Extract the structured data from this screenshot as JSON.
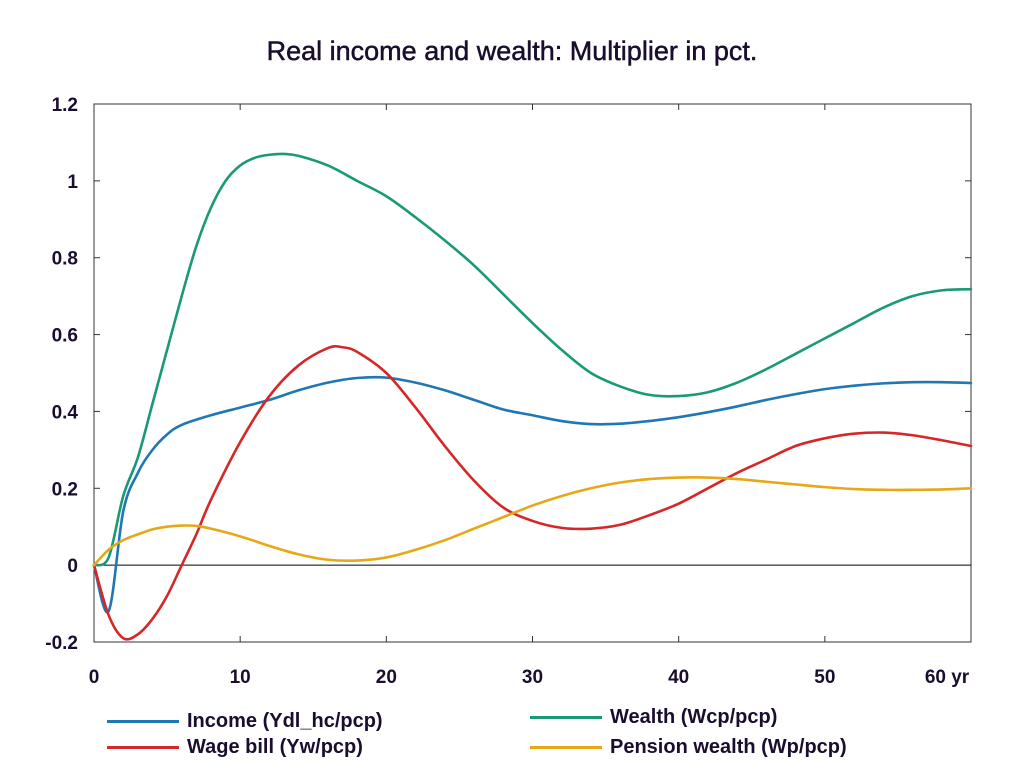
{
  "chart_data": {
    "type": "line",
    "title": "Real income and wealth: Multiplier in pct.",
    "x_unit_label": "yr",
    "xlim": [
      0,
      60
    ],
    "ylim": [
      -0.2,
      1.2
    ],
    "x_ticks": [
      0,
      10,
      20,
      30,
      40,
      50,
      60
    ],
    "x_tick_labels": [
      "0",
      "10",
      "20",
      "30",
      "40",
      "50",
      "60 yr"
    ],
    "y_ticks": [
      -0.2,
      0,
      0.2,
      0.4,
      0.6,
      0.8,
      1,
      1.2
    ],
    "y_tick_labels": [
      "-0.2",
      "0",
      "0.2",
      "0.4",
      "0.6",
      "0.8",
      "1",
      "1.2"
    ],
    "grid": false,
    "legend_position": "bottom",
    "series": [
      {
        "name": "Income (Ydl_hc/pcp)",
        "color": "#1f77b4",
        "x": [
          0,
          1,
          2,
          3,
          4,
          5,
          6,
          8,
          10,
          12,
          14,
          16,
          18,
          20,
          22,
          24,
          26,
          28,
          30,
          32,
          34,
          36,
          38,
          40,
          42,
          44,
          46,
          48,
          50,
          52,
          54,
          56,
          58,
          60
        ],
        "y": [
          0,
          -0.12,
          0.14,
          0.24,
          0.3,
          0.34,
          0.365,
          0.39,
          0.41,
          0.43,
          0.455,
          0.475,
          0.487,
          0.488,
          0.475,
          0.455,
          0.43,
          0.405,
          0.39,
          0.375,
          0.367,
          0.368,
          0.375,
          0.385,
          0.398,
          0.413,
          0.43,
          0.445,
          0.458,
          0.467,
          0.473,
          0.476,
          0.476,
          0.474
        ]
      },
      {
        "name": "Wage bill (Yw/pcp)",
        "color": "#d62728",
        "x": [
          0,
          1,
          2,
          3,
          4,
          5,
          6,
          7,
          8,
          10,
          12,
          14,
          16,
          17,
          18,
          20,
          22,
          24,
          26,
          28,
          30,
          32,
          34,
          36,
          38,
          40,
          42,
          44,
          46,
          48,
          50,
          52,
          54,
          56,
          58,
          60
        ],
        "y": [
          0,
          -0.13,
          -0.19,
          -0.18,
          -0.14,
          -0.08,
          0.0,
          0.08,
          0.17,
          0.32,
          0.44,
          0.52,
          0.565,
          0.567,
          0.555,
          0.5,
          0.41,
          0.31,
          0.22,
          0.15,
          0.115,
          0.097,
          0.095,
          0.105,
          0.13,
          0.16,
          0.2,
          0.24,
          0.275,
          0.31,
          0.33,
          0.342,
          0.345,
          0.338,
          0.325,
          0.31
        ]
      },
      {
        "name": "Wealth (Wcp/pcp)",
        "color": "#1a9977",
        "x": [
          0,
          1,
          2,
          3,
          4,
          5,
          6,
          7,
          8,
          9,
          10,
          11,
          12,
          13,
          14,
          16,
          18,
          20,
          22,
          24,
          26,
          28,
          30,
          32,
          34,
          36,
          38,
          40,
          42,
          44,
          46,
          48,
          50,
          52,
          54,
          56,
          58,
          60
        ],
        "y": [
          0,
          0.02,
          0.18,
          0.28,
          0.42,
          0.56,
          0.7,
          0.83,
          0.93,
          1.0,
          1.04,
          1.06,
          1.068,
          1.07,
          1.065,
          1.04,
          1.0,
          0.96,
          0.905,
          0.845,
          0.78,
          0.705,
          0.63,
          0.56,
          0.5,
          0.465,
          0.443,
          0.44,
          0.45,
          0.475,
          0.51,
          0.55,
          0.59,
          0.63,
          0.67,
          0.7,
          0.715,
          0.718
        ]
      },
      {
        "name": "Pension wealth (Wp/pcp)",
        "color": "#e6a817",
        "x": [
          0,
          1,
          2,
          3,
          4,
          5,
          6,
          7,
          8,
          10,
          12,
          14,
          16,
          18,
          20,
          22,
          24,
          26,
          28,
          30,
          32,
          34,
          36,
          38,
          40,
          42,
          44,
          46,
          48,
          50,
          52,
          54,
          56,
          58,
          60
        ],
        "y": [
          0,
          0.04,
          0.065,
          0.08,
          0.093,
          0.1,
          0.103,
          0.102,
          0.095,
          0.075,
          0.05,
          0.028,
          0.014,
          0.012,
          0.02,
          0.04,
          0.065,
          0.095,
          0.125,
          0.155,
          0.18,
          0.2,
          0.215,
          0.224,
          0.228,
          0.228,
          0.224,
          0.217,
          0.21,
          0.203,
          0.198,
          0.196,
          0.196,
          0.197,
          0.2
        ]
      }
    ]
  }
}
